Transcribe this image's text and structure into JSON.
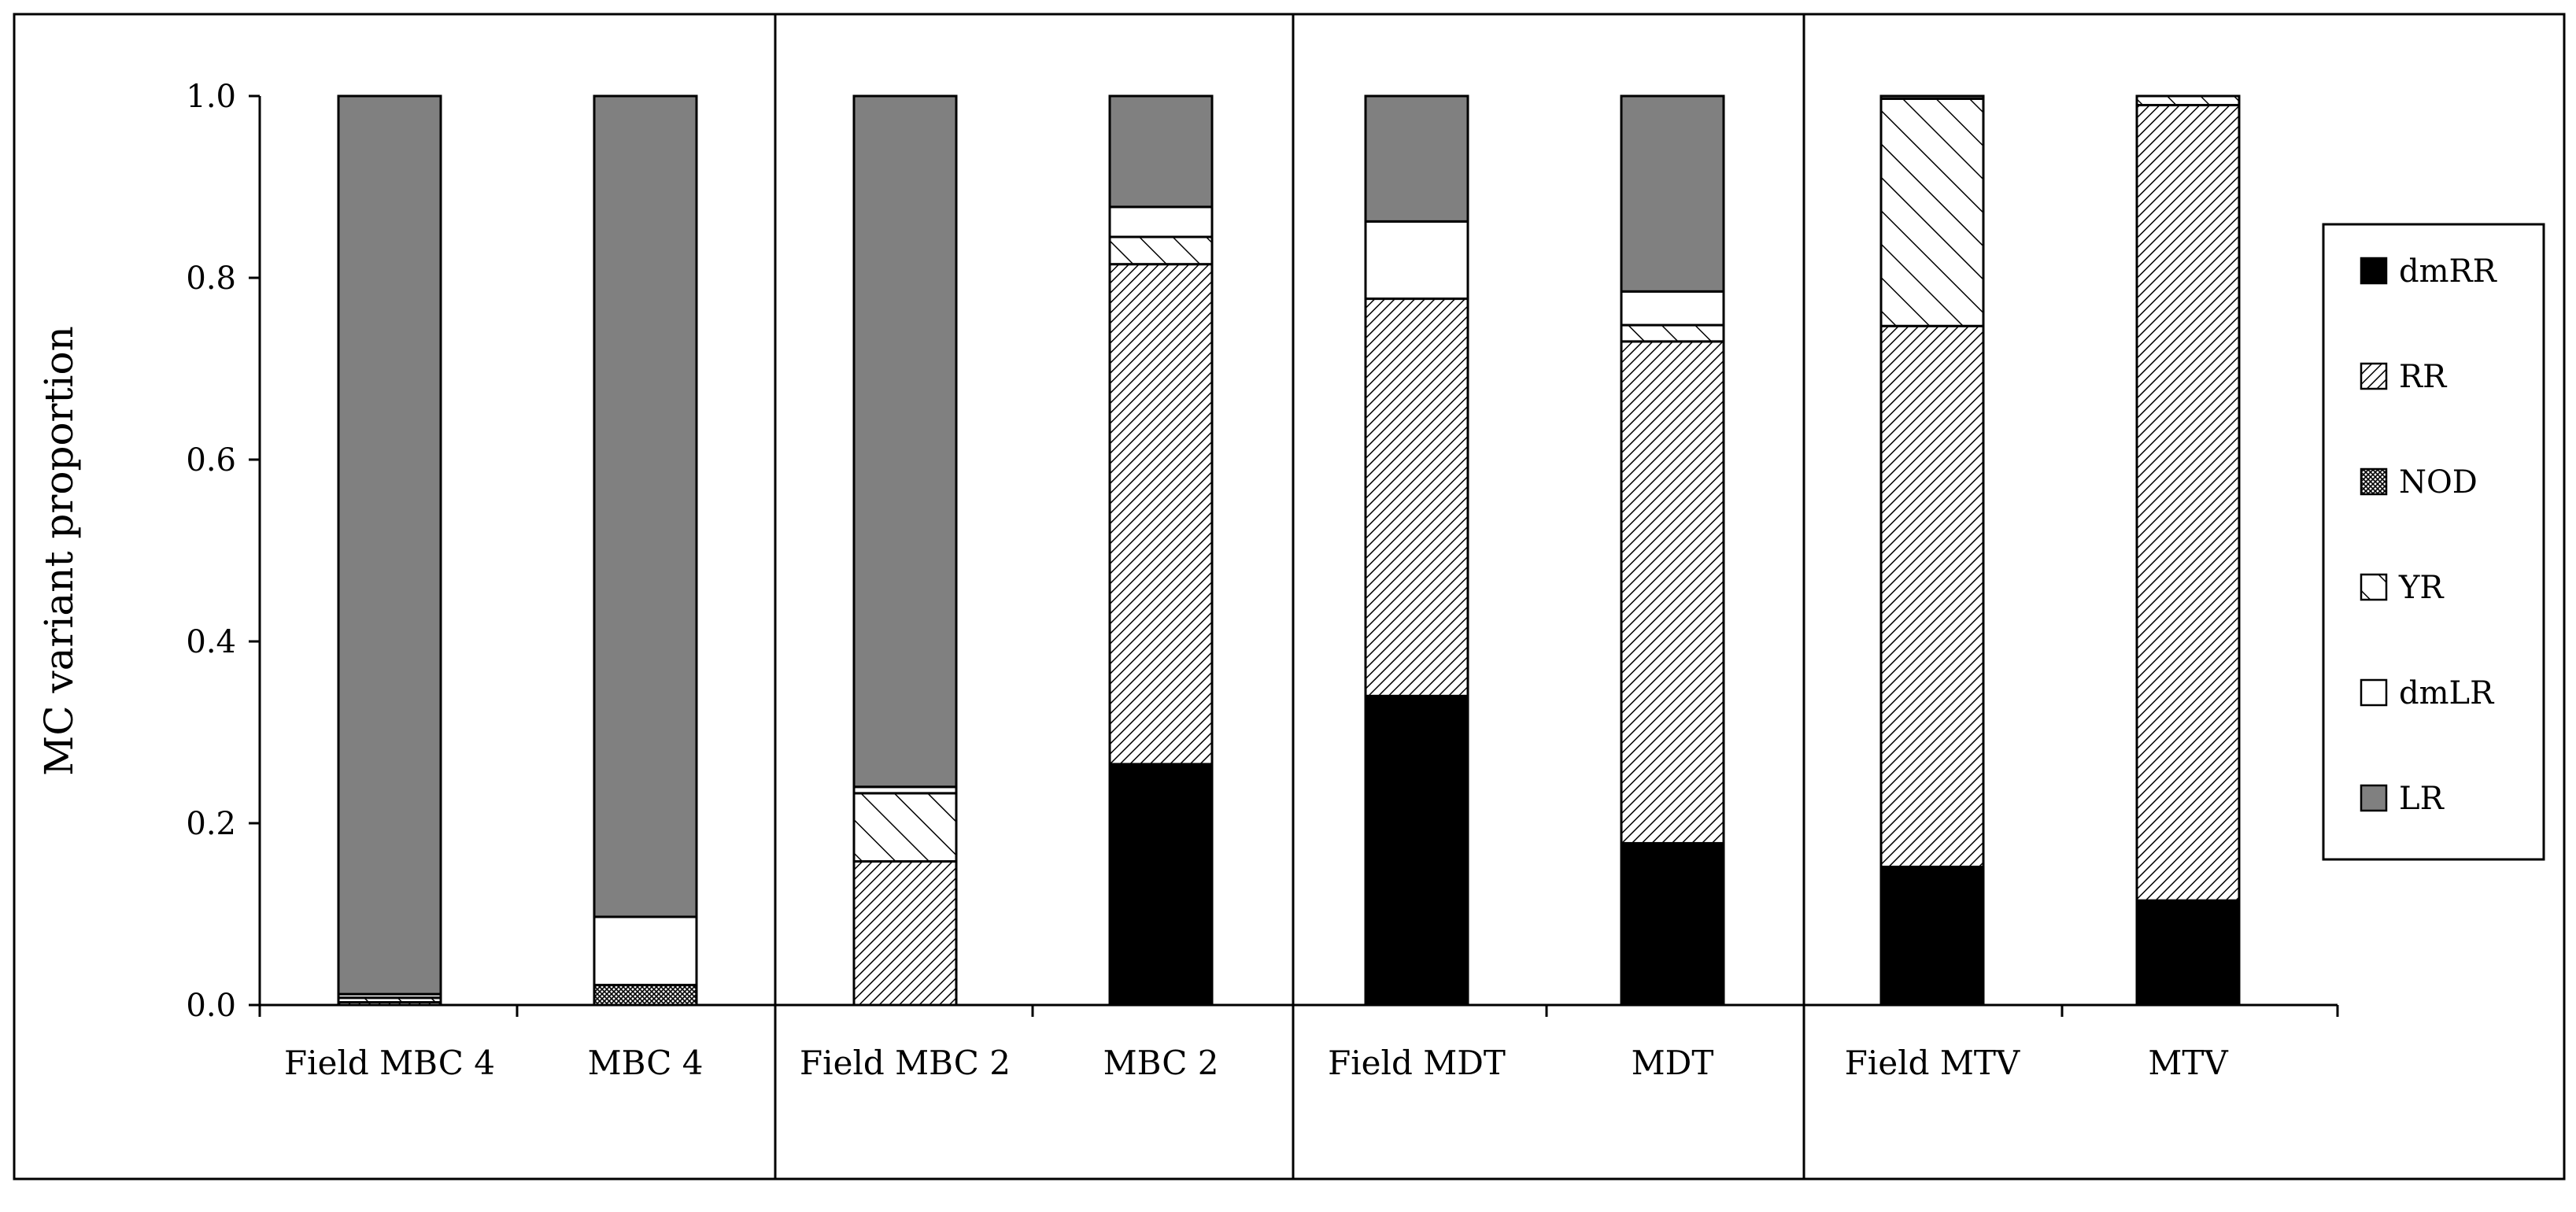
{
  "chart_data": {
    "type": "bar",
    "stacked": true,
    "title": "",
    "xlabel": "",
    "ylabel": "MC variant  proportion",
    "ylim": [
      0,
      1.0
    ],
    "yticks": [
      "0.0",
      "0.2",
      "0.4",
      "0.6",
      "0.8",
      "1.0"
    ],
    "grid": false,
    "legend_position": "right",
    "categories": [
      "Field MBC 4",
      "MBC 4",
      "Field MBC 2",
      "MBC 2",
      "Field MDT",
      "MDT",
      "Field MTV",
      "MTV"
    ],
    "series": [
      {
        "name": "dmRR",
        "pattern": "solid-black",
        "values": [
          0.0,
          0.0,
          0.0,
          0.265,
          0.34,
          0.178,
          0.152,
          0.115
        ]
      },
      {
        "name": "RR",
        "pattern": "fine-diagonal",
        "values": [
          0.003,
          0.0,
          0.158,
          0.55,
          0.437,
          0.552,
          0.595,
          0.875
        ]
      },
      {
        "name": "NOD",
        "pattern": "crosshatch",
        "values": [
          0.0,
          0.022,
          0.0,
          0.0,
          0.0,
          0.0,
          0.0,
          0.0
        ]
      },
      {
        "name": "YR",
        "pattern": "wide-diagonal",
        "values": [
          0.005,
          0.0,
          0.075,
          0.03,
          0.0,
          0.018,
          0.25,
          0.01
        ]
      },
      {
        "name": "dmLR",
        "pattern": "white",
        "values": [
          0.004,
          0.075,
          0.007,
          0.033,
          0.085,
          0.037,
          0.0,
          0.0
        ]
      },
      {
        "name": "LR",
        "pattern": "solid-gray",
        "values": [
          0.988,
          0.903,
          0.76,
          0.122,
          0.138,
          0.215,
          0.003,
          0.0
        ]
      }
    ],
    "colors": {
      "solid-black": "#000000",
      "solid-gray": "#808080",
      "white": "#ffffff"
    }
  }
}
